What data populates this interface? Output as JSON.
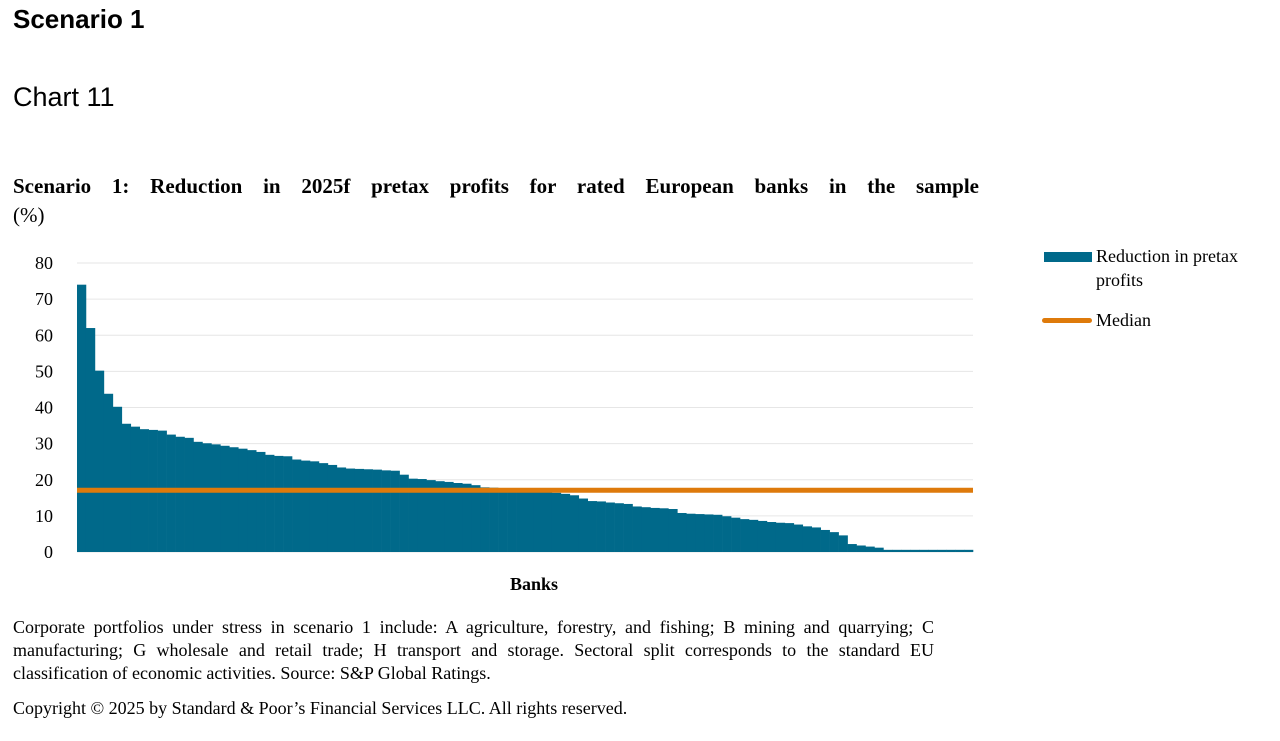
{
  "page": {
    "section_title": "Scenario 1",
    "chart_label": "Chart 11",
    "footnote": "Corporate portfolios under stress in scenario 1 include: A agriculture, forestry, and fishing; B mining and quarrying; C manufacturing; G wholesale and retail trade; H transport and storage. Sectoral split corresponds to the standard EU classification of economic activities. Source: S&P Global Ratings.",
    "copyright": "Copyright © 2025 by Standard & Poor’s Financial Services LLC. All rights reserved."
  },
  "chart_data": {
    "type": "bar",
    "title": "Scenario 1: Reduction in 2025f pretax profits for rated European banks in the sample",
    "unit": "(%)",
    "xlabel": "Banks",
    "ylabel": "",
    "ylim": [
      0,
      80
    ],
    "yticks": [
      0,
      10,
      20,
      30,
      40,
      50,
      60,
      70,
      80
    ],
    "grid": true,
    "legend_position": "right",
    "colors": {
      "bars": "#00698a",
      "median": "#de7a0b",
      "grid": "#e6e6e6"
    },
    "series": [
      {
        "name": "Reduction in pretax profits",
        "values": [
          74,
          62,
          50.2,
          43.8,
          40.2,
          35.5,
          34.7,
          34,
          33.8,
          33.6,
          32.5,
          31.9,
          31.6,
          30.5,
          30.1,
          29.8,
          29.4,
          29,
          28.6,
          28.2,
          27.7,
          26.9,
          26.6,
          26.5,
          25.6,
          25.3,
          25.1,
          24.6,
          24.1,
          23.4,
          23.1,
          23,
          22.9,
          22.8,
          22.6,
          22.5,
          21.4,
          20.3,
          20.2,
          19.9,
          19.6,
          19.4,
          19.1,
          18.9,
          18.5,
          17.9,
          17.8,
          17.6,
          17.4,
          17.1,
          16.9,
          16.8,
          16.5,
          16.4,
          16.1,
          15.7,
          14.8,
          14.1,
          14,
          13.7,
          13.5,
          13.3,
          12.6,
          12.4,
          12.2,
          12.1,
          11.9,
          10.8,
          10.6,
          10.5,
          10.4,
          10.3,
          9.9,
          9.5,
          9.1,
          8.9,
          8.6,
          8.3,
          8.1,
          8,
          7.6,
          7.1,
          6.8,
          6.1,
          5.5,
          4.6,
          2.2,
          1.8,
          1.5,
          1.2,
          0.6,
          0.6,
          0.6,
          0.6,
          0.6,
          0.6,
          0.6,
          0.6,
          0.6,
          0.6
        ]
      },
      {
        "name": "Median",
        "value": 17.1
      }
    ]
  }
}
